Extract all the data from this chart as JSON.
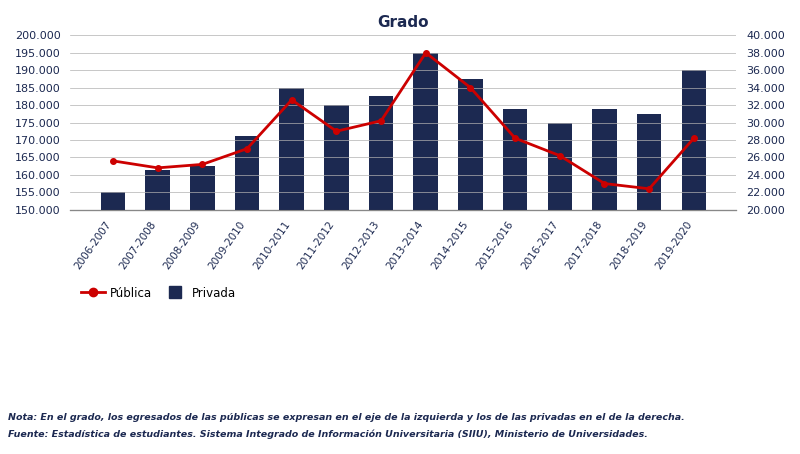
{
  "years": [
    "2006-2007",
    "2007-2008",
    "2008-2009",
    "2009-2010",
    "2010-2011",
    "2011-2012",
    "2012-2013",
    "2013-2014",
    "2014-2015",
    "2015-2016",
    "2016-2017",
    "2017-2018",
    "2018-2019",
    "2019-2020"
  ],
  "privada_bars": [
    22000,
    24500,
    25000,
    28500,
    34000,
    32000,
    33000,
    38000,
    35000,
    31500,
    30000,
    31500,
    31000,
    36000
  ],
  "publica_line": [
    164000,
    162000,
    163000,
    167500,
    181500,
    172500,
    175500,
    195000,
    185000,
    170500,
    165500,
    157500,
    156000,
    170500
  ],
  "bar_color": "#1c2951",
  "line_color": "#cc0000",
  "title": "Grado",
  "title_fontsize": 11,
  "ylim_left": [
    150000,
    200000
  ],
  "ylim_right": [
    20000,
    40000
  ],
  "yticks_left": [
    150000,
    155000,
    160000,
    165000,
    170000,
    175000,
    180000,
    185000,
    190000,
    195000,
    200000
  ],
  "yticks_right": [
    20000,
    22000,
    24000,
    26000,
    28000,
    30000,
    32000,
    34000,
    36000,
    38000,
    40000
  ],
  "legend_publica": "Pública",
  "legend_privada": "Privada",
  "note_line1": "Nota: En el grado, los egresados de las públicas se expresan en el eje de la izquierda y los de las privadas en el de la derecha.",
  "note_line2": "Fuente: Estadística de estudiantes. Sistema Integrado de Información Universitaria (SIIU), Ministerio de Universidades.",
  "grid_color": "#b0b0b0",
  "bg_color": "#ffffff",
  "bar_width": 0.55
}
